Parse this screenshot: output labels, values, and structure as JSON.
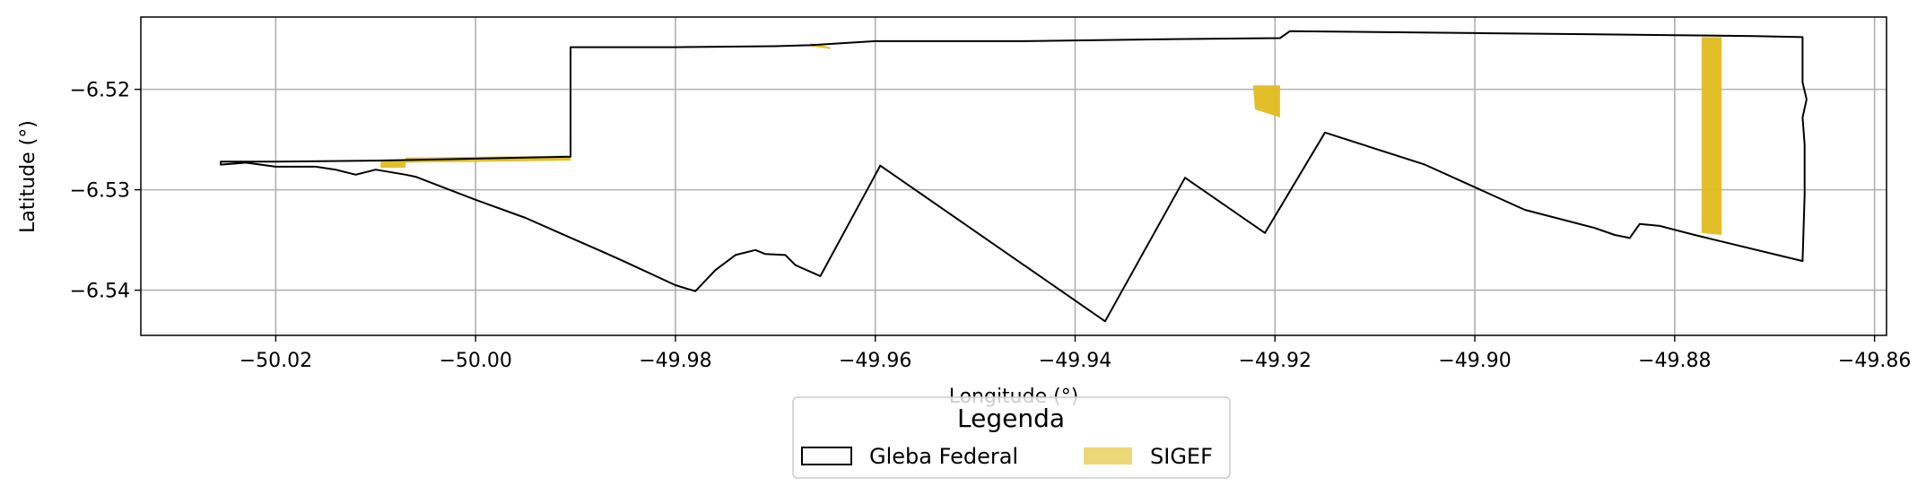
{
  "chart_data": {
    "type": "map",
    "xlabel": "Longitude (°)",
    "ylabel": "Latitude (°)",
    "xlim": [
      -50.0335,
      -49.8588
    ],
    "ylim": [
      -6.5445,
      -6.5128
    ],
    "grid": true,
    "x_ticks": [
      -50.02,
      -50.0,
      -49.98,
      -49.96,
      -49.94,
      -49.92,
      -49.9,
      -49.88,
      -49.86
    ],
    "y_ticks": [
      -6.52,
      -6.53,
      -6.54
    ],
    "x_tick_labels": [
      "−50.02",
      "−50.00",
      "−49.98",
      "−49.96",
      "−49.94",
      "−49.92",
      "−49.90",
      "−49.88",
      "−49.86"
    ],
    "y_tick_labels": [
      "−6.52",
      "−6.53",
      "−6.54"
    ],
    "legend": {
      "title": "Legenda",
      "placement": "bottom-center",
      "entries": [
        "Gleba Federal",
        "SIGEF"
      ]
    },
    "colors": {
      "gleba_edge": "#000000",
      "sigef_fill": "#e0bc1e",
      "grid": "#b0b0b0"
    },
    "gleba_federal": [
      [
        -50.0255,
        -6.5272
      ],
      [
        -50.02,
        -6.5272
      ],
      [
        -50.01,
        -6.5271
      ],
      [
        -50.0,
        -6.5269
      ],
      [
        -49.9905,
        -6.5267
      ],
      [
        -49.9905,
        -6.5158
      ],
      [
        -49.98,
        -6.5158
      ],
      [
        -49.97,
        -6.5157
      ],
      [
        -49.9665,
        -6.5156
      ],
      [
        -49.96,
        -6.5152
      ],
      [
        -49.945,
        -6.5152
      ],
      [
        -49.93,
        -6.515
      ],
      [
        -49.9195,
        -6.5149
      ],
      [
        -49.9185,
        -6.5142
      ],
      [
        -49.9,
        -6.5144
      ],
      [
        -49.88,
        -6.5146
      ],
      [
        -49.872,
        -6.5147
      ],
      [
        -49.8672,
        -6.5148
      ],
      [
        -49.8672,
        -6.5193
      ],
      [
        -49.8668,
        -6.521
      ],
      [
        -49.8672,
        -6.5228
      ],
      [
        -49.867,
        -6.5255
      ],
      [
        -49.867,
        -6.5305
      ],
      [
        -49.8672,
        -6.5371
      ],
      [
        -49.878,
        -6.5345
      ],
      [
        -49.8815,
        -6.5336
      ],
      [
        -49.8835,
        -6.5334
      ],
      [
        -49.8845,
        -6.5348
      ],
      [
        -49.886,
        -6.5345
      ],
      [
        -49.888,
        -6.5338
      ],
      [
        -49.895,
        -6.532
      ],
      [
        -49.905,
        -6.5275
      ],
      [
        -49.915,
        -6.5243
      ],
      [
        -49.921,
        -6.5343
      ],
      [
        -49.929,
        -6.5288
      ],
      [
        -49.937,
        -6.5431
      ],
      [
        -49.9595,
        -6.5276
      ],
      [
        -49.9655,
        -6.5386
      ],
      [
        -49.968,
        -6.5375
      ],
      [
        -49.969,
        -6.5365
      ],
      [
        -49.971,
        -6.5364
      ],
      [
        -49.972,
        -6.536
      ],
      [
        -49.974,
        -6.5365
      ],
      [
        -49.976,
        -6.538
      ],
      [
        -49.978,
        -6.5401
      ],
      [
        -49.98,
        -6.5395
      ],
      [
        -49.985,
        -6.5372
      ],
      [
        -49.987,
        -6.5363
      ],
      [
        -49.99,
        -6.535
      ],
      [
        -49.995,
        -6.5328
      ],
      [
        -50.0,
        -6.531
      ],
      [
        -50.006,
        -6.5287
      ],
      [
        -50.007,
        -6.5285
      ],
      [
        -50.01,
        -6.528
      ],
      [
        -50.012,
        -6.5285
      ],
      [
        -50.014,
        -6.528
      ],
      [
        -50.016,
        -6.5277
      ],
      [
        -50.02,
        -6.5277
      ],
      [
        -50.023,
        -6.5273
      ],
      [
        -50.0255,
        -6.5275
      ]
    ],
    "sigef_parcels": [
      [
        [
          -50.0095,
          -6.527
        ],
        [
          -50.007,
          -6.527
        ],
        [
          -50.007,
          -6.5278
        ],
        [
          -50.0095,
          -6.5278
        ]
      ],
      [
        [
          -50.007,
          -6.5268
        ],
        [
          -49.9905,
          -6.5266
        ],
        [
          -49.9905,
          -6.5271
        ],
        [
          -50.007,
          -6.5273
        ]
      ],
      [
        [
          -49.9665,
          -6.5154
        ],
        [
          -49.9645,
          -6.5158
        ],
        [
          -49.9645,
          -6.516
        ],
        [
          -49.9665,
          -6.5157
        ]
      ],
      [
        [
          -49.9222,
          -6.5196
        ],
        [
          -49.9195,
          -6.5196
        ],
        [
          -49.9195,
          -6.5228
        ],
        [
          -49.922,
          -6.522
        ]
      ],
      [
        [
          -49.8773,
          -6.5148
        ],
        [
          -49.8753,
          -6.5148
        ],
        [
          -49.8753,
          -6.5345
        ],
        [
          -49.8773,
          -6.5343
        ]
      ]
    ]
  }
}
